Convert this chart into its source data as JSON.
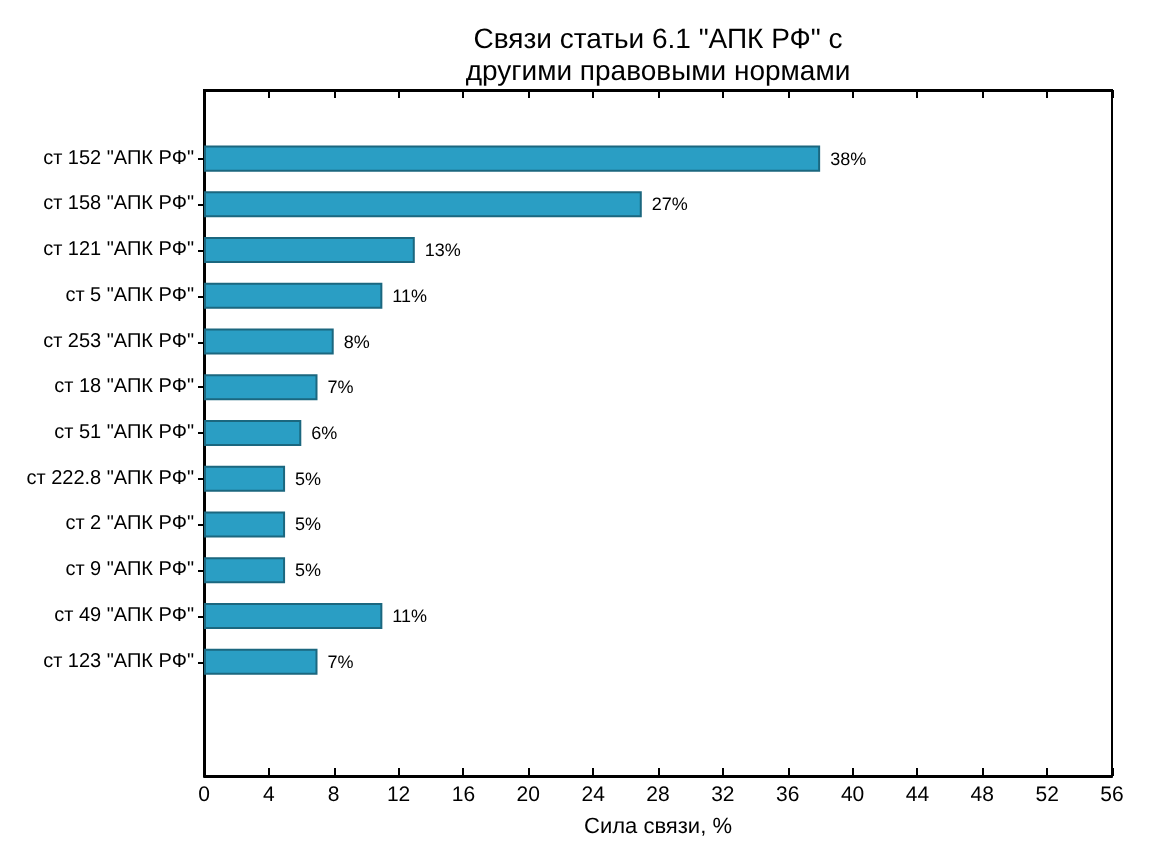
{
  "chart_data": {
    "type": "bar",
    "orientation": "horizontal",
    "title": "Связи статьи 6.1 \"АПК РФ\" с\nдругими правовыми нормами",
    "xlabel": "Сила связи, %",
    "categories": [
      "ст 152 \"АПК РФ\"",
      "ст 158 \"АПК РФ\"",
      "ст 121 \"АПК РФ\"",
      "ст 5 \"АПК РФ\"",
      "ст 253 \"АПК РФ\"",
      "ст 18 \"АПК РФ\"",
      "ст 51 \"АПК РФ\"",
      "ст 222.8 \"АПК РФ\"",
      "ст 2 \"АПК РФ\"",
      "ст 9 \"АПК РФ\"",
      "ст 49 \"АПК РФ\"",
      "ст 123 \"АПК РФ\""
    ],
    "values": [
      38,
      27,
      13,
      11,
      8,
      7,
      6,
      5,
      5,
      5,
      11,
      7
    ],
    "value_labels": [
      "38%",
      "27%",
      "13%",
      "11%",
      "8%",
      "7%",
      "6%",
      "5%",
      "5%",
      "5%",
      "11%",
      "7%"
    ],
    "color": "#2a9ec4",
    "xlim": [
      0,
      56
    ],
    "xticks": [
      0,
      4,
      8,
      12,
      16,
      20,
      24,
      28,
      32,
      36,
      40,
      44,
      48,
      52,
      56
    ],
    "grid": false
  }
}
